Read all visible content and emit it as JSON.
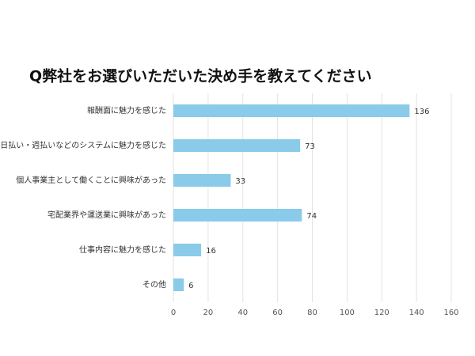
{
  "chart_data": {
    "type": "bar",
    "orientation": "horizontal",
    "title": "Q弊社をお選びいただいた決め手を教えてください",
    "categories": [
      "報酬面に魅力を感じた",
      "日払い・週払いなどのシステムに魅力を感じた",
      "個人事業主として働くことに興味があった",
      "宅配業界や運送業に興味があった",
      "仕事内容に魅力を感じた",
      "その他"
    ],
    "values": [
      136,
      73,
      33,
      74,
      16,
      6
    ],
    "color": "#89cbe9",
    "xlim": [
      0,
      160
    ],
    "xticks": [
      0,
      20,
      40,
      60,
      80,
      100,
      120,
      140,
      160
    ],
    "grid": true
  }
}
